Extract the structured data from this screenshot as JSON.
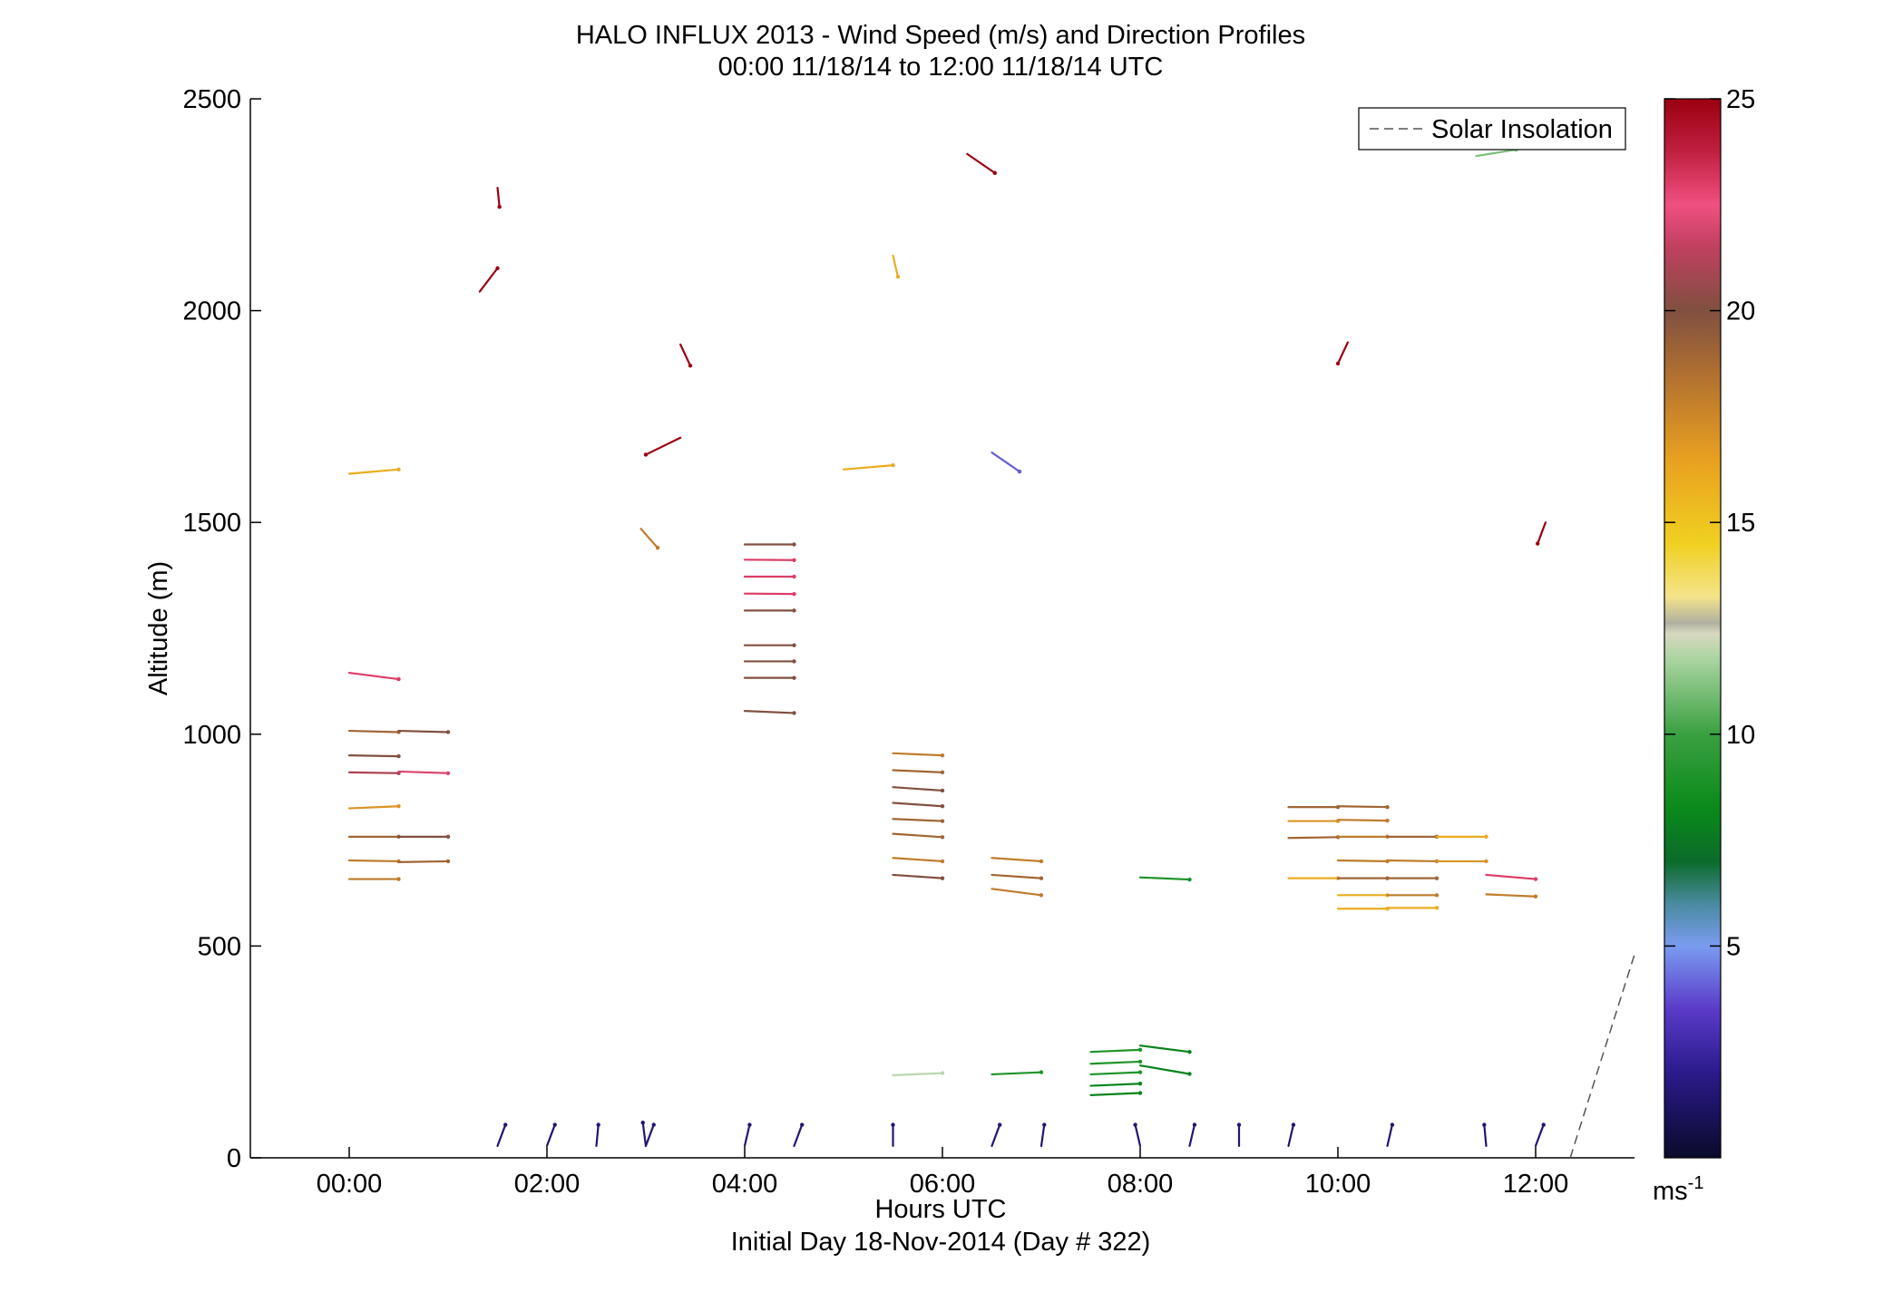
{
  "chart_data": {
    "type": "scatter",
    "title": "HALO INFLUX 2013 - Wind Speed (m/s) and Direction Profiles",
    "subtitle": "00:00 11/18/14 to 12:00 11/18/14  UTC",
    "xlabel": "Hours UTC",
    "xlabel2": "Initial Day 18-Nov-2014 (Day # 322)",
    "ylabel": "Altitude (m)",
    "xlim_hours": [
      -1,
      13
    ],
    "ylim": [
      0,
      2500
    ],
    "x_ticks": [
      {
        "h": 0,
        "label": "00:00"
      },
      {
        "h": 2,
        "label": "02:00"
      },
      {
        "h": 4,
        "label": "04:00"
      },
      {
        "h": 6,
        "label": "06:00"
      },
      {
        "h": 8,
        "label": "08:00"
      },
      {
        "h": 10,
        "label": "10:00"
      },
      {
        "h": 12,
        "label": "12:00"
      }
    ],
    "y_ticks": [
      {
        "v": 0,
        "label": "0"
      },
      {
        "v": 500,
        "label": "500"
      },
      {
        "v": 1000,
        "label": "1000"
      },
      {
        "v": 1500,
        "label": "1500"
      },
      {
        "v": 2000,
        "label": "2000"
      },
      {
        "v": 2500,
        "label": "2500"
      }
    ],
    "colorbar": {
      "min": 0,
      "max": 25,
      "ticks": [
        {
          "v": 5,
          "label": "5"
        },
        {
          "v": 10,
          "label": "10"
        },
        {
          "v": 15,
          "label": "15"
        },
        {
          "v": 20,
          "label": "20"
        },
        {
          "v": 25,
          "label": "25"
        }
      ],
      "unit_base": "ms",
      "unit_exp": "-1"
    },
    "legend": {
      "label": "Solar Insolation",
      "placement": "top-right",
      "style": "dashed",
      "color": "#555555"
    },
    "solar_insolation": {
      "x": [
        12.35,
        13.0
      ],
      "y": [
        0,
        480
      ]
    },
    "grid": false,
    "wind_vectors": [
      {
        "h": 0.0,
        "alt": 1615,
        "speed": 16,
        "dh": 0.5,
        "dalt": 10
      },
      {
        "h": 0.0,
        "alt": 1145,
        "speed": 23,
        "dh": 0.5,
        "dalt": -15
      },
      {
        "h": 0.0,
        "alt": 1008,
        "speed": 19,
        "dh": 0.5,
        "dalt": -3
      },
      {
        "h": 0.5,
        "alt": 1008,
        "speed": 20,
        "dh": 0.5,
        "dalt": -3
      },
      {
        "h": 0.0,
        "alt": 950,
        "speed": 20,
        "dh": 0.5,
        "dalt": -2
      },
      {
        "h": 0.0,
        "alt": 910,
        "speed": 21,
        "dh": 0.5,
        "dalt": -2
      },
      {
        "h": 0.5,
        "alt": 912,
        "speed": 22,
        "dh": 0.5,
        "dalt": -4
      },
      {
        "h": 0.0,
        "alt": 825,
        "speed": 17,
        "dh": 0.5,
        "dalt": 5
      },
      {
        "h": 0.0,
        "alt": 758,
        "speed": 19,
        "dh": 0.5,
        "dalt": 0
      },
      {
        "h": 0.5,
        "alt": 758,
        "speed": 20,
        "dh": 0.5,
        "dalt": 0
      },
      {
        "h": 0.0,
        "alt": 702,
        "speed": 18,
        "dh": 0.5,
        "dalt": -2
      },
      {
        "h": 0.5,
        "alt": 698,
        "speed": 19,
        "dh": 0.5,
        "dalt": 2
      },
      {
        "h": 0.0,
        "alt": 658,
        "speed": 18,
        "dh": 0.5,
        "dalt": 0
      },
      {
        "h": 1.5,
        "alt": 2290,
        "speed": 25,
        "dh": 0.02,
        "dalt": -45
      },
      {
        "h": 1.32,
        "alt": 2045,
        "speed": 25,
        "dh": 0.18,
        "dalt": 55
      },
      {
        "h": 3.35,
        "alt": 1920,
        "speed": 25,
        "dh": 0.1,
        "dalt": -50
      },
      {
        "h": 3.35,
        "alt": 1700,
        "speed": 25,
        "dh": -0.35,
        "dalt": -40
      },
      {
        "h": 2.95,
        "alt": 1485,
        "speed": 18,
        "dh": 0.17,
        "dalt": -45
      },
      {
        "h": 4.0,
        "alt": 1448,
        "speed": 20,
        "dh": 0.5,
        "dalt": 0
      },
      {
        "h": 4.0,
        "alt": 1412,
        "speed": 23,
        "dh": 0.5,
        "dalt": -1
      },
      {
        "h": 4.0,
        "alt": 1372,
        "speed": 23,
        "dh": 0.5,
        "dalt": 0
      },
      {
        "h": 4.0,
        "alt": 1332,
        "speed": 23,
        "dh": 0.5,
        "dalt": -1
      },
      {
        "h": 4.0,
        "alt": 1292,
        "speed": 20,
        "dh": 0.5,
        "dalt": 0
      },
      {
        "h": 4.0,
        "alt": 1210,
        "speed": 20,
        "dh": 0.5,
        "dalt": 0
      },
      {
        "h": 4.0,
        "alt": 1172,
        "speed": 20,
        "dh": 0.5,
        "dalt": 0
      },
      {
        "h": 4.0,
        "alt": 1133,
        "speed": 20,
        "dh": 0.5,
        "dalt": 0
      },
      {
        "h": 4.0,
        "alt": 1055,
        "speed": 20,
        "dh": 0.5,
        "dalt": -5
      },
      {
        "h": 5.0,
        "alt": 1625,
        "speed": 16,
        "dh": 0.5,
        "dalt": 10
      },
      {
        "h": 5.5,
        "alt": 2130,
        "speed": 16,
        "dh": 0.05,
        "dalt": -50
      },
      {
        "h": 6.25,
        "alt": 2370,
        "speed": 25,
        "dh": 0.28,
        "dalt": -45
      },
      {
        "h": 6.5,
        "alt": 1665,
        "speed": 4,
        "dh": 0.28,
        "dalt": -45
      },
      {
        "h": 5.5,
        "alt": 955,
        "speed": 18,
        "dh": 0.5,
        "dalt": -5
      },
      {
        "h": 5.5,
        "alt": 915,
        "speed": 19,
        "dh": 0.5,
        "dalt": -5
      },
      {
        "h": 5.5,
        "alt": 875,
        "speed": 20,
        "dh": 0.5,
        "dalt": -8
      },
      {
        "h": 5.5,
        "alt": 838,
        "speed": 20,
        "dh": 0.5,
        "dalt": -8
      },
      {
        "h": 5.5,
        "alt": 800,
        "speed": 19,
        "dh": 0.5,
        "dalt": -5
      },
      {
        "h": 5.5,
        "alt": 765,
        "speed": 19,
        "dh": 0.5,
        "dalt": -8
      },
      {
        "h": 5.5,
        "alt": 708,
        "speed": 18,
        "dh": 0.5,
        "dalt": -8
      },
      {
        "h": 5.5,
        "alt": 668,
        "speed": 20,
        "dh": 0.5,
        "dalt": -8
      },
      {
        "h": 6.5,
        "alt": 708,
        "speed": 18,
        "dh": 0.5,
        "dalt": -8
      },
      {
        "h": 6.5,
        "alt": 668,
        "speed": 19,
        "dh": 0.5,
        "dalt": -8
      },
      {
        "h": 6.5,
        "alt": 635,
        "speed": 18,
        "dh": 0.5,
        "dalt": -15
      },
      {
        "h": 5.5,
        "alt": 195,
        "speed": 12,
        "dh": 0.5,
        "dalt": 5
      },
      {
        "h": 6.5,
        "alt": 197,
        "speed": 9,
        "dh": 0.5,
        "dalt": 5
      },
      {
        "h": 7.5,
        "alt": 250,
        "speed": 9,
        "dh": 0.5,
        "dalt": 5
      },
      {
        "h": 7.5,
        "alt": 222,
        "speed": 9,
        "dh": 0.5,
        "dalt": 5
      },
      {
        "h": 7.5,
        "alt": 197,
        "speed": 9,
        "dh": 0.5,
        "dalt": 5
      },
      {
        "h": 7.5,
        "alt": 170,
        "speed": 8,
        "dh": 0.5,
        "dalt": 5
      },
      {
        "h": 7.5,
        "alt": 148,
        "speed": 8,
        "dh": 0.5,
        "dalt": 5
      },
      {
        "h": 8.0,
        "alt": 265,
        "speed": 8,
        "dh": 0.5,
        "dalt": -15
      },
      {
        "h": 8.0,
        "alt": 218,
        "speed": 8,
        "dh": 0.5,
        "dalt": -20
      },
      {
        "h": 8.0,
        "alt": 662,
        "speed": 9,
        "dh": 0.5,
        "dalt": -5
      },
      {
        "h": 10.1,
        "alt": 1925,
        "speed": 25,
        "dh": -0.1,
        "dalt": -50
      },
      {
        "h": 11.4,
        "alt": 2365,
        "speed": 11,
        "dh": 0.4,
        "dalt": 15
      },
      {
        "h": 12.1,
        "alt": 1500,
        "speed": 25,
        "dh": -0.08,
        "dalt": -50
      },
      {
        "h": 9.5,
        "alt": 828,
        "speed": 19,
        "dh": 0.5,
        "dalt": 0
      },
      {
        "h": 10.0,
        "alt": 830,
        "speed": 19,
        "dh": 0.5,
        "dalt": -2
      },
      {
        "h": 9.5,
        "alt": 795,
        "speed": 17,
        "dh": 0.5,
        "dalt": 0
      },
      {
        "h": 10.0,
        "alt": 798,
        "speed": 18,
        "dh": 0.5,
        "dalt": -2
      },
      {
        "h": 9.5,
        "alt": 755,
        "speed": 19,
        "dh": 0.5,
        "dalt": 2
      },
      {
        "h": 10.0,
        "alt": 758,
        "speed": 18,
        "dh": 0.5,
        "dalt": 0
      },
      {
        "h": 10.5,
        "alt": 758,
        "speed": 19,
        "dh": 0.5,
        "dalt": 0
      },
      {
        "h": 11.0,
        "alt": 758,
        "speed": 16,
        "dh": 0.5,
        "dalt": 0
      },
      {
        "h": 10.0,
        "alt": 702,
        "speed": 18,
        "dh": 0.5,
        "dalt": -2
      },
      {
        "h": 10.5,
        "alt": 702,
        "speed": 18,
        "dh": 0.5,
        "dalt": -2
      },
      {
        "h": 11.0,
        "alt": 700,
        "speed": 17,
        "dh": 0.5,
        "dalt": 0
      },
      {
        "h": 9.5,
        "alt": 660,
        "speed": 16,
        "dh": 0.5,
        "dalt": 0
      },
      {
        "h": 10.0,
        "alt": 660,
        "speed": 19,
        "dh": 0.5,
        "dalt": 0
      },
      {
        "h": 10.5,
        "alt": 660,
        "speed": 19,
        "dh": 0.5,
        "dalt": 0
      },
      {
        "h": 10.0,
        "alt": 620,
        "speed": 16,
        "dh": 0.5,
        "dalt": 0
      },
      {
        "h": 10.5,
        "alt": 620,
        "speed": 18,
        "dh": 0.5,
        "dalt": 0
      },
      {
        "h": 10.0,
        "alt": 588,
        "speed": 16,
        "dh": 0.5,
        "dalt": 0
      },
      {
        "h": 10.5,
        "alt": 590,
        "speed": 16,
        "dh": 0.5,
        "dalt": 0
      },
      {
        "h": 11.5,
        "alt": 668,
        "speed": 23,
        "dh": 0.5,
        "dalt": -10
      },
      {
        "h": 11.5,
        "alt": 622,
        "speed": 18,
        "dh": 0.5,
        "dalt": -5
      },
      {
        "h": 1.5,
        "alt": 28,
        "speed": 1.5,
        "dh": 0.08,
        "dalt": 50
      },
      {
        "h": 2.0,
        "alt": 28,
        "speed": 1.5,
        "dh": 0.08,
        "dalt": 50
      },
      {
        "h": 2.5,
        "alt": 28,
        "speed": 1.5,
        "dh": 0.02,
        "dalt": 50
      },
      {
        "h": 3.0,
        "alt": 28,
        "speed": 1.5,
        "dh": -0.03,
        "dalt": 55
      },
      {
        "h": 3.0,
        "alt": 28,
        "speed": 1.5,
        "dh": 0.08,
        "dalt": 50
      },
      {
        "h": 4.0,
        "alt": 28,
        "speed": 1.5,
        "dh": 0.05,
        "dalt": 50
      },
      {
        "h": 4.5,
        "alt": 28,
        "speed": 1.5,
        "dh": 0.08,
        "dalt": 50
      },
      {
        "h": 5.5,
        "alt": 28,
        "speed": 1.5,
        "dh": 0.0,
        "dalt": 50
      },
      {
        "h": 6.5,
        "alt": 28,
        "speed": 1.5,
        "dh": 0.08,
        "dalt": 50
      },
      {
        "h": 7.0,
        "alt": 28,
        "speed": 1.5,
        "dh": 0.03,
        "dalt": 50
      },
      {
        "h": 8.0,
        "alt": 28,
        "speed": 1.5,
        "dh": -0.05,
        "dalt": 50
      },
      {
        "h": 8.5,
        "alt": 28,
        "speed": 1.5,
        "dh": 0.05,
        "dalt": 50
      },
      {
        "h": 9.0,
        "alt": 28,
        "speed": 1.5,
        "dh": 0.0,
        "dalt": 50
      },
      {
        "h": 9.5,
        "alt": 28,
        "speed": 1.5,
        "dh": 0.05,
        "dalt": 50
      },
      {
        "h": 10.5,
        "alt": 28,
        "speed": 1.5,
        "dh": 0.05,
        "dalt": 50
      },
      {
        "h": 11.5,
        "alt": 28,
        "speed": 1.5,
        "dh": -0.02,
        "dalt": 50
      },
      {
        "h": 12.0,
        "alt": 28,
        "speed": 1.5,
        "dh": 0.08,
        "dalt": 50
      }
    ]
  }
}
